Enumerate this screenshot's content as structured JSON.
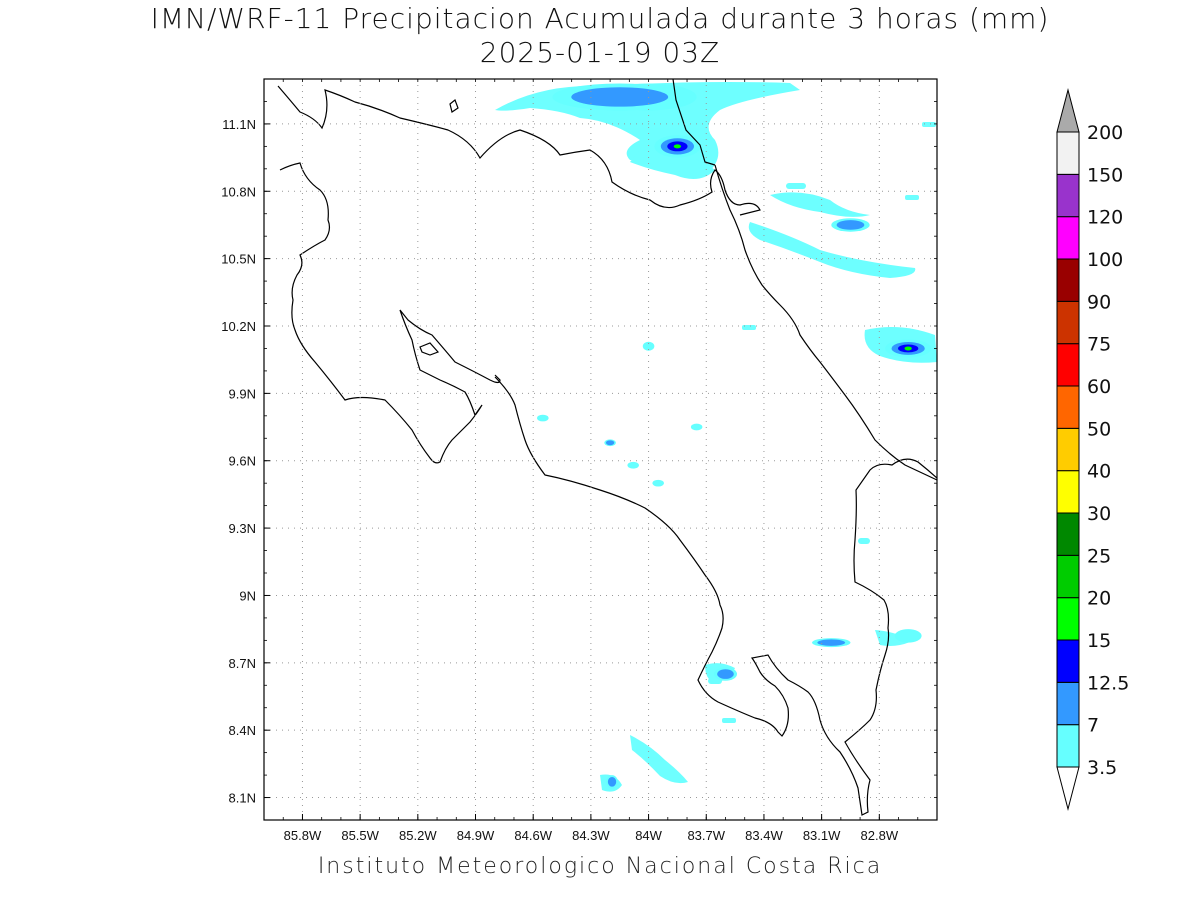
{
  "title": {
    "line1": "IMN/WRF-11 Precipitacion Acumulada durante 3 horas (mm)",
    "line2": "2025-01-19 03Z"
  },
  "footer": "Instituto Meteorologico Nacional Costa Rica",
  "map": {
    "lon_range": [
      -86.0,
      -82.5
    ],
    "lat_range": [
      8.0,
      11.3
    ],
    "lon_ticks": [
      "85.8W",
      "85.5W",
      "85.2W",
      "84.9W",
      "84.6W",
      "84.3W",
      "84W",
      "83.7W",
      "83.4W",
      "83.1W",
      "82.8W"
    ],
    "lon_tick_values": [
      -85.8,
      -85.5,
      -85.2,
      -84.9,
      -84.6,
      -84.3,
      -84.0,
      -83.7,
      -83.4,
      -83.1,
      -82.8
    ],
    "lat_ticks": [
      "11.1N",
      "10.8N",
      "10.5N",
      "10.2N",
      "9.9N",
      "9.6N",
      "9.3N",
      "9N",
      "8.7N",
      "8.4N",
      "8.1N"
    ],
    "lat_tick_values": [
      11.1,
      10.8,
      10.5,
      10.2,
      9.9,
      9.6,
      9.3,
      9.0,
      8.7,
      8.4,
      8.1
    ],
    "grid": "dotted",
    "coastline_color": "#000000"
  },
  "colorbar": {
    "labels": [
      "3.5",
      "7",
      "12.5",
      "15",
      "20",
      "25",
      "30",
      "40",
      "50",
      "60",
      "75",
      "90",
      "100",
      "120",
      "150",
      "200"
    ],
    "colors": [
      "#66ffff",
      "#3399ff",
      "#0000ff",
      "#00ff00",
      "#00cc00",
      "#008800",
      "#ffff00",
      "#ffcc00",
      "#ff6600",
      "#ff0000",
      "#cc3300",
      "#990000",
      "#ff00ff",
      "#9933cc",
      "#f2f2f2",
      "#aaaaaa"
    ],
    "upper_arrow_color": "#aaaaaa",
    "lower_arrow_color": "#ffffff"
  },
  "precip_cells": [
    {
      "lon": -84.0,
      "lat": 11.22,
      "rx": 0.25,
      "ry": 0.06,
      "level": 3
    },
    {
      "lon": -83.85,
      "lat": 11.0,
      "rx": 0.12,
      "ry": 0.05,
      "level": 3
    },
    {
      "lon": -82.65,
      "lat": 10.1,
      "rx": 0.12,
      "ry": 0.04,
      "level": 3
    },
    {
      "lon": -84.15,
      "lat": 11.22,
      "rx": 0.35,
      "ry": 0.06,
      "level": 1
    },
    {
      "lon": -82.95,
      "lat": 10.65,
      "rx": 0.1,
      "ry": 0.03,
      "level": 1
    },
    {
      "lon": -83.05,
      "lat": 8.79,
      "rx": 0.1,
      "ry": 0.02,
      "level": 1
    },
    {
      "lon": -83.6,
      "lat": 8.65,
      "rx": 0.06,
      "ry": 0.03,
      "level": 1
    },
    {
      "lon": -84.19,
      "lat": 8.17,
      "rx": 0.03,
      "ry": 0.03,
      "level": 1
    },
    {
      "lon": -84.2,
      "lat": 9.68,
      "rx": 0.03,
      "ry": 0.015,
      "level": 1
    },
    {
      "lon": -84.55,
      "lat": 9.79,
      "rx": 0.03,
      "ry": 0.015,
      "level": 0
    },
    {
      "lon": -84.0,
      "lat": 10.11,
      "rx": 0.03,
      "ry": 0.02,
      "level": 0
    },
    {
      "lon": -83.75,
      "lat": 9.75,
      "rx": 0.03,
      "ry": 0.015,
      "level": 0
    },
    {
      "lon": -84.08,
      "lat": 9.58,
      "rx": 0.03,
      "ry": 0.015,
      "level": 0
    },
    {
      "lon": -83.95,
      "lat": 9.5,
      "rx": 0.03,
      "ry": 0.015,
      "level": 0
    },
    {
      "lon": -82.65,
      "lat": 8.82,
      "rx": 0.07,
      "ry": 0.03,
      "level": 0
    }
  ]
}
